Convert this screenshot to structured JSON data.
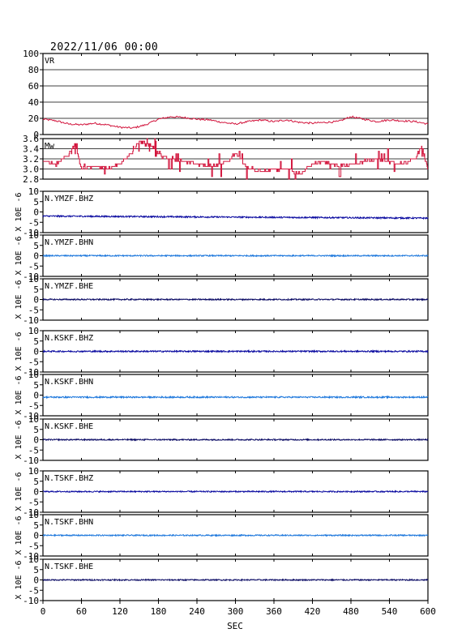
{
  "header": {
    "timestamp": "2022/11/06 00:00"
  },
  "colors": {
    "vr": "#d2143c",
    "mw": "#d2143c",
    "bhz": "#0a0aa0",
    "bhn": "#1e78dc",
    "bhe": "#0a0a64",
    "frame": "#000000"
  },
  "chart_data": [
    {
      "type": "line",
      "label": "VR",
      "ylim": [
        0,
        100
      ],
      "yticks": [
        "0",
        "20",
        "40",
        "60",
        "80",
        "100"
      ],
      "grid": true,
      "series": [
        {
          "x": [
            0,
            20,
            40,
            60,
            80,
            100,
            120,
            140,
            160,
            180,
            200,
            220,
            240,
            260,
            280,
            300,
            320,
            340,
            360,
            380,
            400,
            420,
            440,
            460,
            480,
            500,
            520,
            540,
            560,
            580,
            600
          ],
          "values": [
            19,
            17,
            13,
            12,
            14,
            12,
            9,
            8,
            12,
            19,
            22,
            21,
            19,
            18,
            15,
            13,
            16,
            18,
            16,
            18,
            15,
            14,
            15,
            16,
            22,
            19,
            16,
            18,
            17,
            16,
            13
          ]
        }
      ]
    },
    {
      "type": "line",
      "label": "Mw",
      "ylim": [
        2.8,
        3.6
      ],
      "yticks": [
        "2.8",
        "3.0",
        "3.2",
        "3.4",
        "3.6"
      ],
      "grid": true,
      "series": [
        {
          "x": [
            0,
            20,
            40,
            50,
            60,
            80,
            100,
            120,
            140,
            150,
            160,
            170,
            180,
            200,
            220,
            240,
            260,
            280,
            300,
            320,
            340,
            360,
            380,
            400,
            420,
            440,
            460,
            480,
            500,
            520,
            540,
            560,
            580,
            590,
            600
          ],
          "values": [
            3.15,
            3.1,
            3.3,
            3.5,
            3.0,
            3.05,
            3.0,
            3.1,
            3.35,
            3.55,
            3.5,
            3.45,
            3.3,
            3.2,
            3.15,
            3.1,
            3.05,
            3.1,
            3.3,
            3.0,
            2.95,
            3.0,
            3.0,
            2.9,
            3.1,
            3.15,
            3.05,
            3.1,
            3.15,
            3.2,
            3.15,
            3.1,
            3.2,
            3.45,
            3.0
          ]
        }
      ]
    },
    {
      "type": "line",
      "label": "N.YMZF.BHZ",
      "ylim": [
        -10,
        10
      ],
      "yticks": [
        "-10",
        "-5",
        "0",
        "5",
        "10"
      ],
      "offset_start": -2,
      "offset_end": -3,
      "noise_amplitude": 0.35,
      "series": [
        {
          "name": "N.YMZF.BHZ"
        }
      ]
    },
    {
      "type": "line",
      "label": "N.YMZF.BHN",
      "ylim": [
        -10,
        10
      ],
      "yticks": [
        "-10",
        "-5",
        "0",
        "5",
        "10"
      ],
      "offset_start": 0,
      "offset_end": 0,
      "noise_amplitude": 0.3,
      "series": [
        {
          "name": "N.YMZF.BHN"
        }
      ]
    },
    {
      "type": "line",
      "label": "N.YMZF.BHE",
      "ylim": [
        -10,
        10
      ],
      "yticks": [
        "-10",
        "-5",
        "0",
        "5",
        "10"
      ],
      "offset_start": 0,
      "offset_end": 0,
      "noise_amplitude": 0.3,
      "series": [
        {
          "name": "N.YMZF.BHE"
        }
      ]
    },
    {
      "type": "line",
      "label": "N.KSKF.BHZ",
      "ylim": [
        -10,
        10
      ],
      "yticks": [
        "-10",
        "-5",
        "0",
        "5",
        "10"
      ],
      "offset_start": 0,
      "offset_end": 0,
      "noise_amplitude": 0.35,
      "series": [
        {
          "name": "N.KSKF.BHZ"
        }
      ]
    },
    {
      "type": "line",
      "label": "N.KSKF.BHN",
      "ylim": [
        -10,
        10
      ],
      "yticks": [
        "-10",
        "-5",
        "0",
        "5",
        "10"
      ],
      "offset_start": -1,
      "offset_end": -1,
      "noise_amplitude": 0.35,
      "series": [
        {
          "name": "N.KSKF.BHN"
        }
      ]
    },
    {
      "type": "line",
      "label": "N.KSKF.BHE",
      "ylim": [
        -10,
        10
      ],
      "yticks": [
        "-10",
        "-5",
        "0",
        "5",
        "10"
      ],
      "offset_start": 0,
      "offset_end": 0,
      "noise_amplitude": 0.3,
      "series": [
        {
          "name": "N.KSKF.BHE"
        }
      ]
    },
    {
      "type": "line",
      "label": "N.TSKF.BHZ",
      "ylim": [
        -10,
        10
      ],
      "yticks": [
        "-10",
        "-5",
        "0",
        "5",
        "10"
      ],
      "offset_start": 0,
      "offset_end": 0,
      "noise_amplitude": 0.3,
      "series": [
        {
          "name": "N.TSKF.BHZ"
        }
      ]
    },
    {
      "type": "line",
      "label": "N.TSKF.BHN",
      "ylim": [
        -10,
        10
      ],
      "yticks": [
        "-10",
        "-5",
        "0",
        "5",
        "10"
      ],
      "offset_start": 0,
      "offset_end": 0,
      "noise_amplitude": 0.3,
      "series": [
        {
          "name": "N.TSKF.BHN"
        }
      ]
    },
    {
      "type": "line",
      "label": "N.TSKF.BHE",
      "ylim": [
        -10,
        10
      ],
      "yticks": [
        "-10",
        "-5",
        "0",
        "5",
        "10"
      ],
      "offset_start": 0,
      "offset_end": 0,
      "noise_amplitude": 0.3,
      "series": [
        {
          "name": "N.TSKF.BHE"
        }
      ]
    }
  ],
  "xaxis": {
    "label": "SEC",
    "ticks": [
      0,
      60,
      120,
      180,
      240,
      300,
      360,
      420,
      480,
      540,
      600
    ],
    "range": [
      0,
      600
    ]
  },
  "ylabel_waveform": "X 10E -6"
}
